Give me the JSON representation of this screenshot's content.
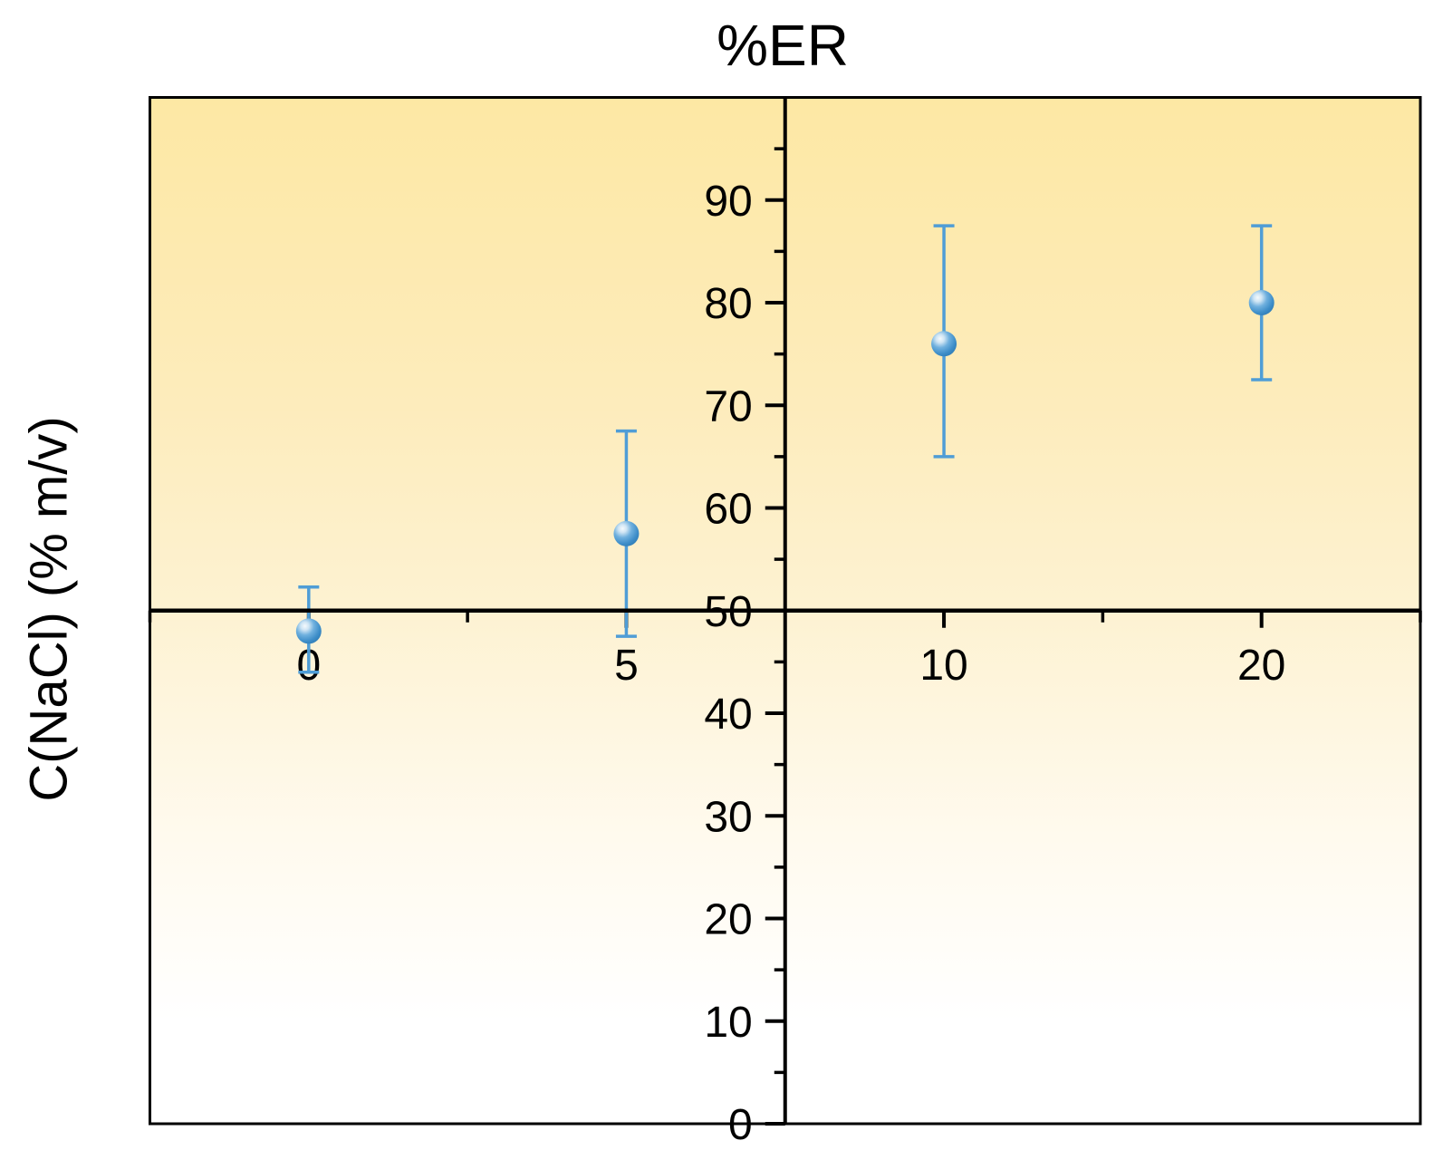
{
  "chart_data": {
    "type": "scatter",
    "title": "%ER",
    "ylabel": "C(NaCl) (% m/v)",
    "xlabel": "",
    "x_categories": [
      "0",
      "5",
      "10",
      "20"
    ],
    "series": [
      {
        "name": "%ER",
        "values": [
          48,
          57.5,
          76,
          80
        ],
        "error_upper": [
          52.3,
          67.5,
          87.5,
          87.5
        ],
        "error_lower": [
          44,
          47.5,
          65,
          72.5
        ]
      }
    ],
    "ylim": [
      0,
      100
    ],
    "y_major_ticks": [
      0,
      10,
      20,
      30,
      40,
      50,
      60,
      70,
      80,
      90
    ],
    "y_minor_ticks": [
      5,
      15,
      25,
      35,
      45,
      55,
      65,
      75,
      85,
      95
    ],
    "x_axis_cross_at_y": 50,
    "y_axis_between_categories": [
      1,
      2
    ],
    "grid": false,
    "legend": false,
    "marker": "sphere",
    "colors": {
      "marker_fill": "#3e8ec9",
      "marker_edge": "#2d7ab3",
      "marker_highlight": "#f5fafd",
      "error_bar": "#4f9dd6",
      "axis": "#000000",
      "text": "#000000",
      "bg_gradient_top": "#fde8a4",
      "bg_gradient_mid": "#fdf2d2",
      "bg_gradient_low": "#fffaee",
      "bg_gradient_bottom": "#ffffff"
    }
  }
}
